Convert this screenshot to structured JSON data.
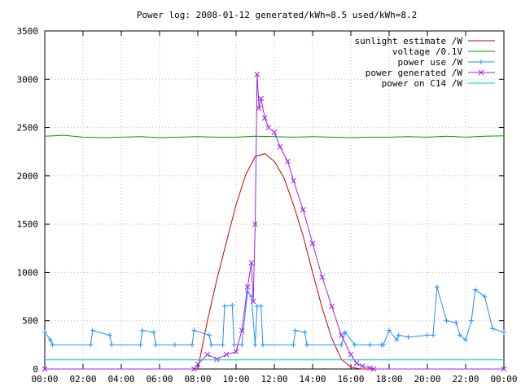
{
  "chart_data": {
    "type": "line",
    "title": "Power log: 2008-01-12 generated/kWh=8.5 used/kWh=8.2",
    "xlim": [
      0,
      24
    ],
    "ylim": [
      0,
      3500
    ],
    "x_ticks": [
      "00:00",
      "02:00",
      "04:00",
      "06:00",
      "08:00",
      "10:00",
      "12:00",
      "14:00",
      "16:00",
      "18:00",
      "20:00",
      "22:00",
      "00:00"
    ],
    "y_ticks": [
      "0",
      "500",
      "1000",
      "1500",
      "2000",
      "2500",
      "3000",
      "3500"
    ],
    "grid": true,
    "legend_position": "top-right",
    "series": [
      {
        "name": "sunlight estimate /W",
        "color": "#cc0000",
        "style": "line",
        "x": [
          8.0,
          8.5,
          9.0,
          9.5,
          10.0,
          10.5,
          11.0,
          11.5,
          12.0,
          12.5,
          13.0,
          13.5,
          14.0,
          14.5,
          15.0,
          15.5,
          16.0,
          16.5,
          17.0,
          24.0
        ],
        "y": [
          0,
          500,
          930,
          1320,
          1700,
          2010,
          2200,
          2230,
          2150,
          1980,
          1700,
          1380,
          1000,
          630,
          320,
          100,
          20,
          0,
          0,
          0
        ]
      },
      {
        "name": "voltage /0.1V",
        "color": "#00a000",
        "style": "line",
        "x": [
          0,
          1,
          2,
          3,
          4,
          5,
          6,
          7,
          8,
          9,
          10,
          11,
          12,
          13,
          14,
          15,
          16,
          17,
          18,
          19,
          20,
          21,
          22,
          23,
          24
        ],
        "y": [
          2410,
          2420,
          2400,
          2395,
          2400,
          2405,
          2395,
          2400,
          2405,
          2400,
          2400,
          2410,
          2405,
          2400,
          2405,
          2400,
          2395,
          2400,
          2400,
          2405,
          2400,
          2410,
          2400,
          2410,
          2415
        ]
      },
      {
        "name": "power use /W",
        "color": "#1e90ff",
        "style": "line-marker",
        "x": [
          0,
          0.3,
          0.4,
          2.4,
          2.5,
          3.4,
          3.5,
          5.0,
          5.1,
          5.7,
          5.8,
          6.8,
          7.7,
          7.8,
          8.6,
          8.7,
          9.3,
          9.4,
          9.8,
          9.9,
          10.3,
          10.6,
          10.8,
          11.0,
          11.1,
          11.3,
          11.4,
          13.0,
          13.1,
          13.6,
          13.7,
          15.5,
          15.7,
          16.2,
          17.0,
          17.6,
          17.7,
          18.0,
          18.4,
          18.5,
          19.0,
          20.0,
          20.3,
          20.5,
          21.0,
          21.5,
          21.7,
          22.0,
          22.3,
          22.5,
          23.0,
          23.4,
          24.0
        ],
        "y": [
          380,
          300,
          250,
          250,
          400,
          350,
          250,
          250,
          400,
          380,
          250,
          250,
          250,
          400,
          350,
          250,
          250,
          650,
          660,
          250,
          250,
          800,
          750,
          250,
          650,
          650,
          250,
          250,
          400,
          380,
          250,
          250,
          380,
          250,
          250,
          250,
          250,
          400,
          300,
          350,
          330,
          350,
          350,
          850,
          500,
          480,
          350,
          300,
          500,
          820,
          750,
          420,
          380
        ]
      },
      {
        "name": "power generated /W",
        "color": "#a020f0",
        "style": "line-marker",
        "x": [
          0,
          7.8,
          8.0,
          8.5,
          9.0,
          9.5,
          10.0,
          10.3,
          10.6,
          10.8,
          10.9,
          11.0,
          11.1,
          11.2,
          11.3,
          11.5,
          11.7,
          12.0,
          12.3,
          12.7,
          13.0,
          13.5,
          14.0,
          14.5,
          15.0,
          15.5,
          16.0,
          16.3,
          16.6,
          17.0,
          17.2,
          24.0
        ],
        "y": [
          0,
          0,
          50,
          150,
          100,
          150,
          180,
          400,
          850,
          1100,
          700,
          1500,
          3050,
          2700,
          2800,
          2600,
          2500,
          2450,
          2300,
          2150,
          1950,
          1650,
          1300,
          950,
          650,
          350,
          150,
          60,
          30,
          10,
          0,
          0
        ]
      },
      {
        "name": "power on C14 /W",
        "color": "#00c8c8",
        "style": "line",
        "x": [
          0,
          24
        ],
        "y": [
          95,
          95
        ]
      }
    ]
  }
}
